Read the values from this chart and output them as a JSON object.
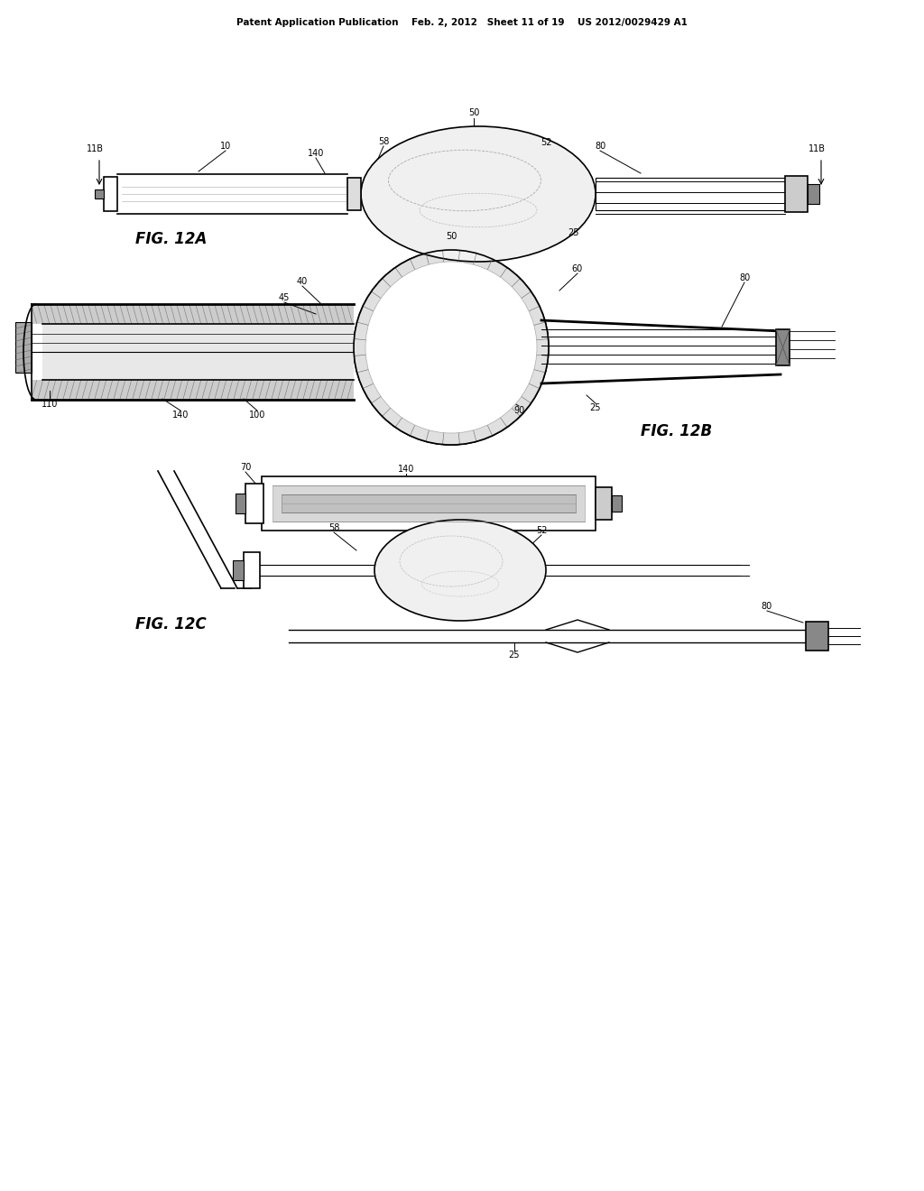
{
  "background_color": "#ffffff",
  "line_color": "#000000",
  "header_text": "Patent Application Publication    Feb. 2, 2012   Sheet 11 of 19    US 2012/0029429 A1",
  "fig12a_label": "FIG. 12A",
  "fig12b_label": "FIG. 12B",
  "fig12c_label": "FIG. 12C",
  "hatch_color": "#555555",
  "gray_fill": "#cccccc",
  "light_gray": "#e8e8e8",
  "dark_gray": "#888888"
}
